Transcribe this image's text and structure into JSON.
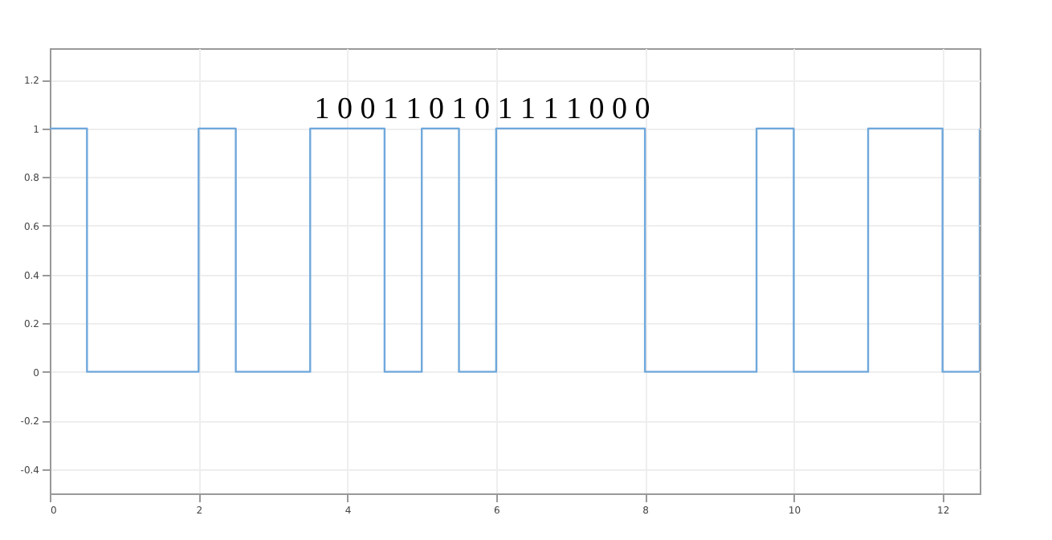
{
  "chart_data": {
    "type": "step",
    "x": [
      0,
      0.5,
      2,
      2.5,
      3.5,
      4.5,
      5,
      5.5,
      6,
      8,
      9.5,
      10,
      11,
      12,
      12.5
    ],
    "series": [
      {
        "color": "#6fa8dc",
        "values": [
          1,
          0,
          1,
          0,
          1,
          0,
          1,
          0,
          1,
          0,
          1,
          0,
          1,
          0,
          1
        ]
      }
    ],
    "xlim": [
      0,
      12.5
    ],
    "xticks": [
      0,
      2,
      4,
      6,
      8,
      10,
      12
    ],
    "ylim": [
      -0.5,
      1.33
    ],
    "yticks": [
      -0.4,
      -0.2,
      0,
      0.2,
      0.4,
      0.6,
      0.8,
      1,
      1.2
    ],
    "grid": true,
    "annotations": [
      "1  0  0  1  1  0  1  0  1  1  1  1  0  0  0"
    ]
  }
}
